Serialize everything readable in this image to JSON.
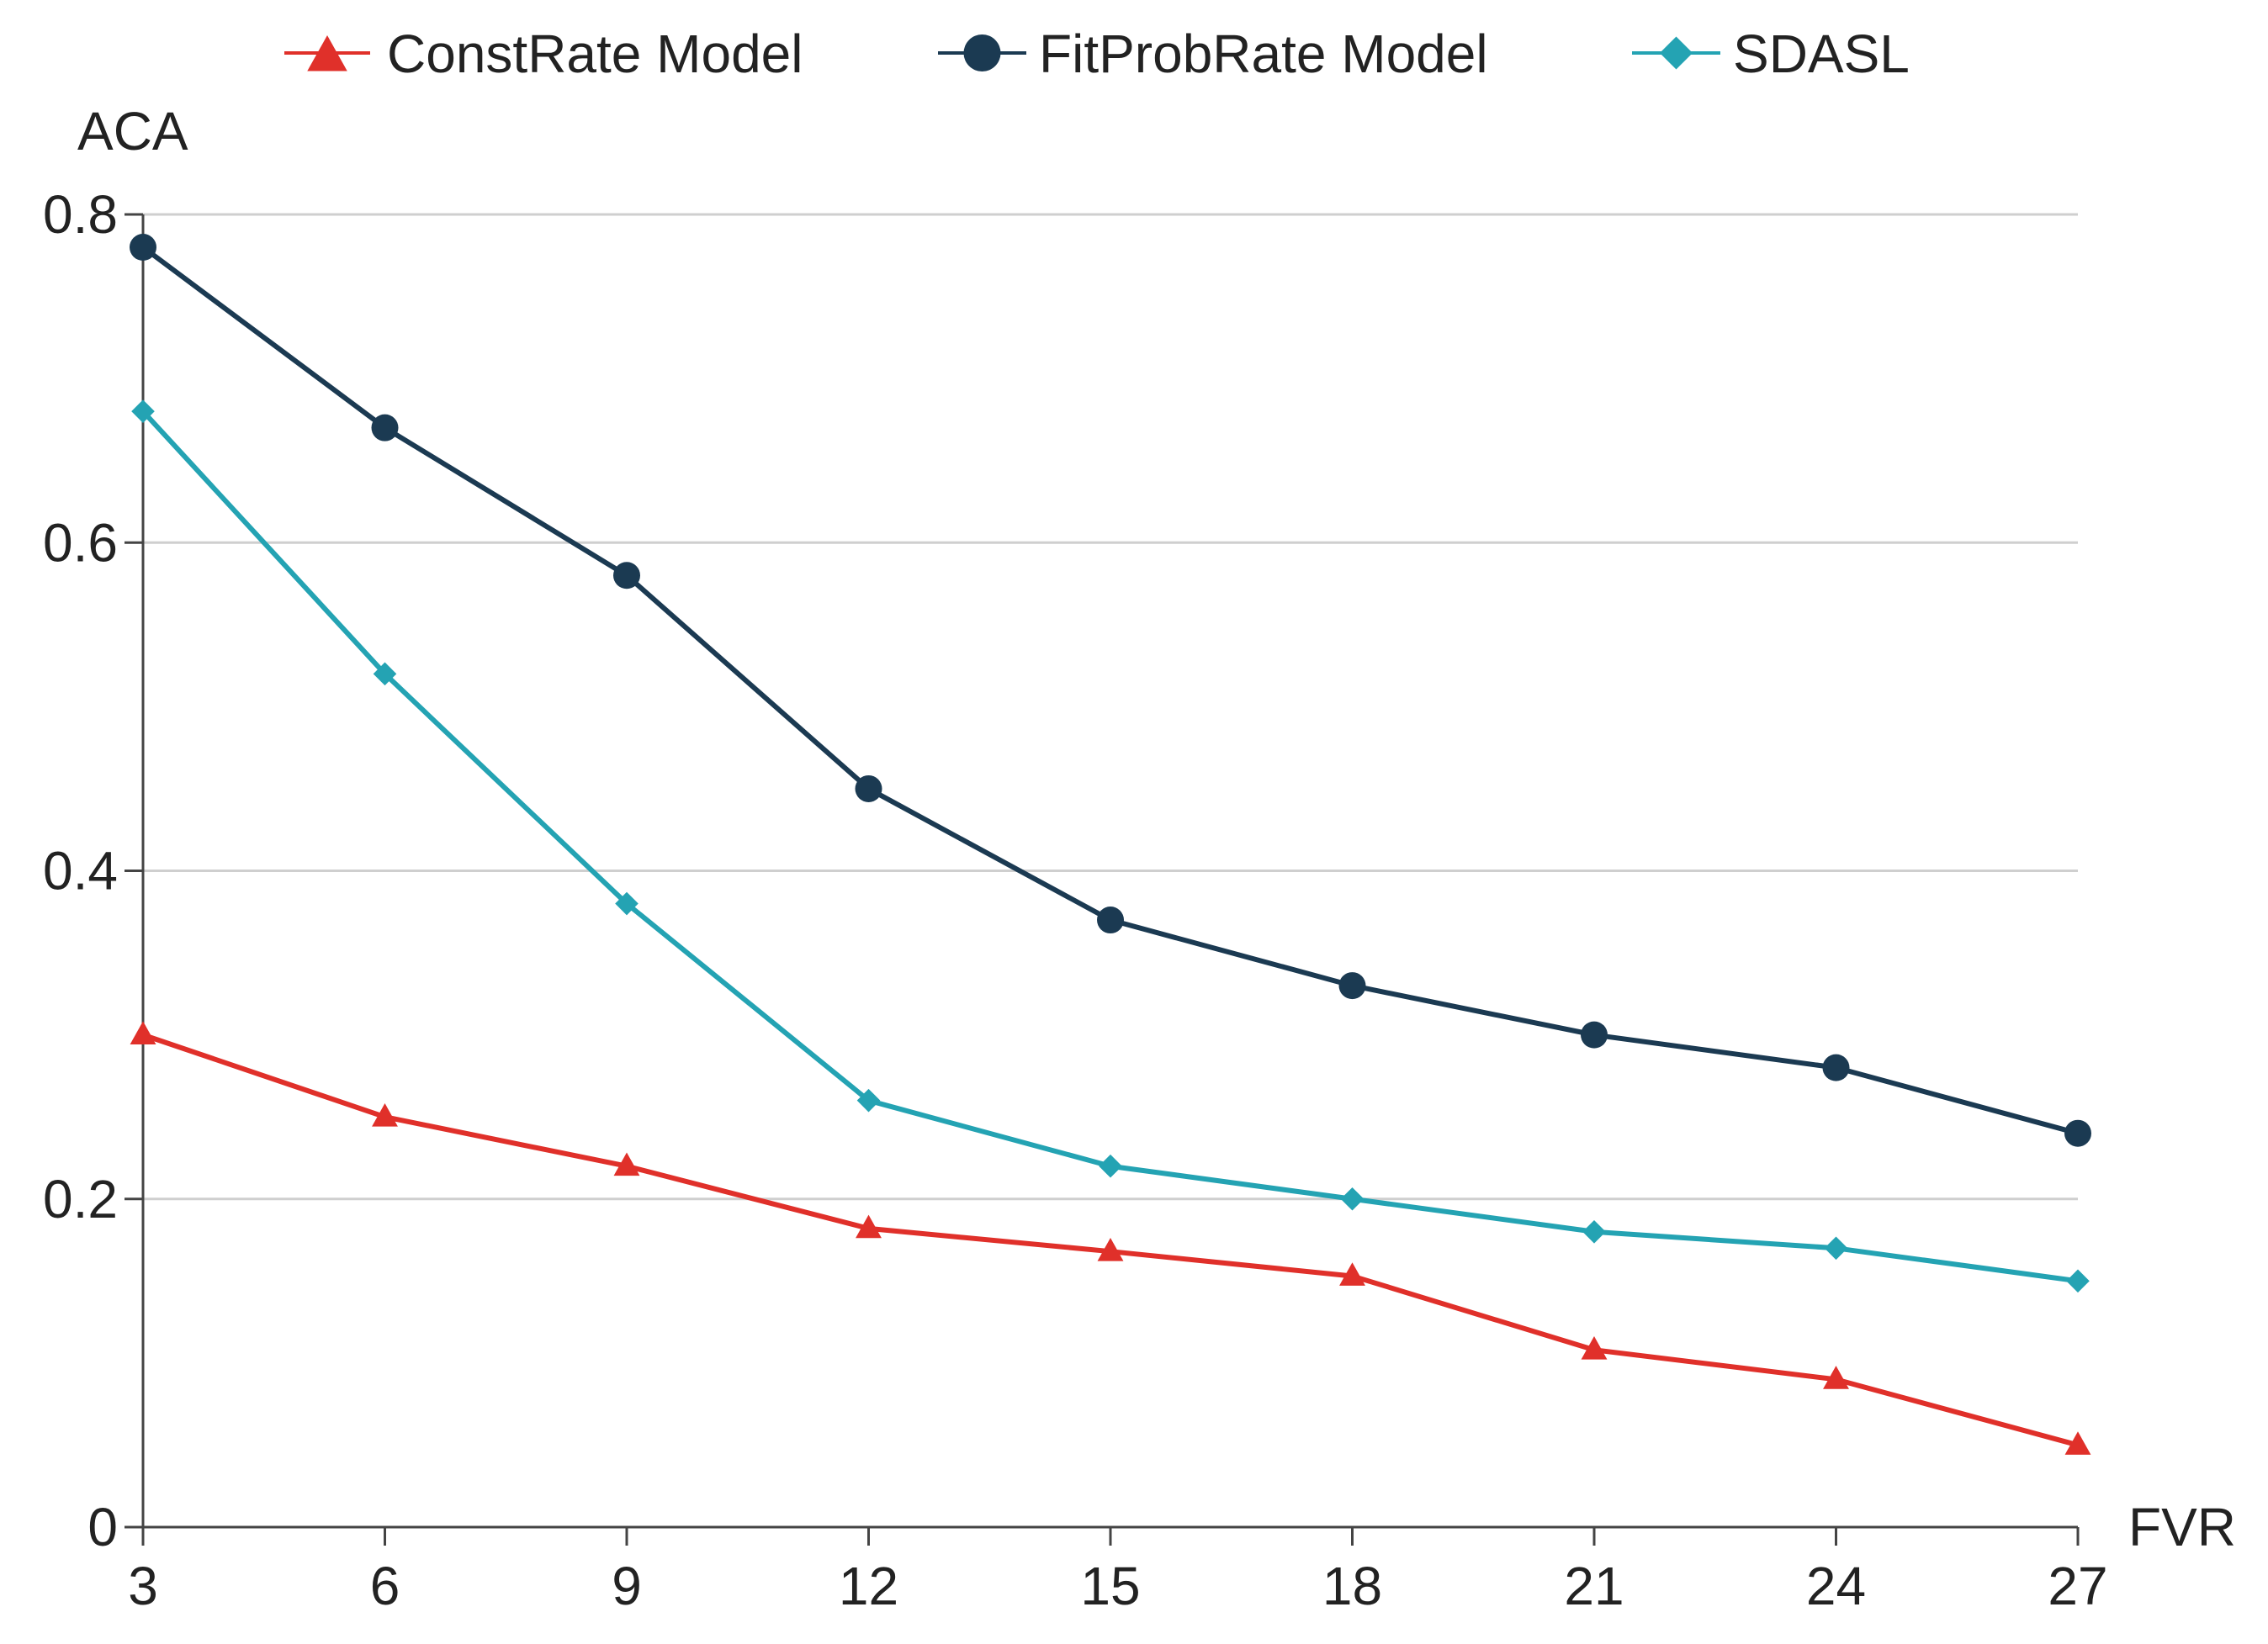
{
  "chart_data": {
    "type": "line",
    "title": "",
    "xlabel": "FVR",
    "ylabel": "ACA",
    "x": [
      3,
      6,
      9,
      12,
      15,
      18,
      21,
      24,
      27
    ],
    "xlim": [
      3,
      27
    ],
    "ylim": [
      0,
      0.8
    ],
    "x_ticks": [
      3,
      6,
      9,
      12,
      15,
      18,
      21,
      24,
      27
    ],
    "y_ticks": [
      0,
      0.2,
      0.4,
      0.6,
      0.8
    ],
    "x_tick_labels": [
      "3",
      "6",
      "9",
      "12",
      "15",
      "18",
      "21",
      "24",
      "27"
    ],
    "y_tick_labels": [
      "0",
      "0.2",
      "0.4",
      "0.6",
      "0.8"
    ],
    "grid": true,
    "legend_position": "top-center",
    "series": [
      {
        "name": "ConstRate Model",
        "color": "#e0302a",
        "marker": "triangle",
        "values": [
          0.3,
          0.25,
          0.22,
          0.182,
          0.168,
          0.153,
          0.108,
          0.09,
          0.05
        ]
      },
      {
        "name": "FitProbRate Model",
        "color": "#1b3a52",
        "marker": "circle",
        "values": [
          0.78,
          0.67,
          0.58,
          0.45,
          0.37,
          0.33,
          0.3,
          0.28,
          0.24
        ]
      },
      {
        "name": "SDASL",
        "color": "#24a3b3",
        "marker": "diamond",
        "values": [
          0.68,
          0.52,
          0.38,
          0.26,
          0.22,
          0.2,
          0.18,
          0.17,
          0.15
        ]
      }
    ]
  }
}
